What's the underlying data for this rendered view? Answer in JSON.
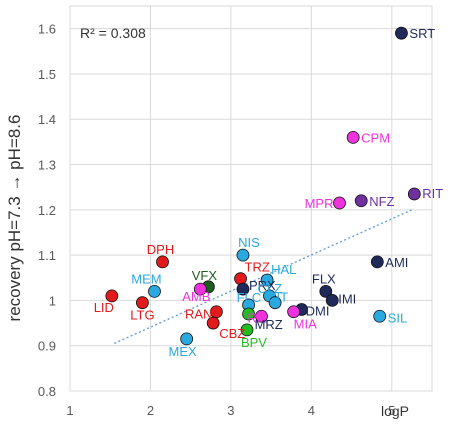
{
  "chart_data": {
    "type": "scatter",
    "title": "",
    "xlabel": "logP",
    "ylabel": "recovery pH=7.3 → pH=8.6",
    "annotation": "R² = 0.308",
    "xlim": [
      1,
      5.5
    ],
    "ylim": [
      0.8,
      1.65
    ],
    "xticks": [
      "1",
      "2",
      "3",
      "4",
      "5"
    ],
    "yticks": [
      "0.8",
      "0.9",
      "1",
      "1.1",
      "1.2",
      "1.3",
      "1.4",
      "1.5",
      "1.6"
    ],
    "grid": true,
    "trendline": {
      "style": "dotted",
      "color": "#5b9bd5",
      "x": [
        1.55,
        5.25
      ],
      "y": [
        0.905,
        1.2
      ]
    },
    "colors": {
      "red": "#e31a1c",
      "navy": "#1f2a5a",
      "magenta": "#ee33dd",
      "purple": "#7030a0",
      "cyan": "#2aa8e0",
      "green": "#22bb22",
      "darkgreen": "#1d5e1d"
    },
    "points": [
      {
        "label": "SRT",
        "x": 5.12,
        "y": 1.59,
        "color": "navy",
        "label_color": "navy"
      },
      {
        "label": "CPM",
        "x": 4.52,
        "y": 1.36,
        "color": "magenta",
        "label_color": "magenta"
      },
      {
        "label": "MPR",
        "x": 4.35,
        "y": 1.215,
        "color": "magenta",
        "label_color": "magenta"
      },
      {
        "label": "NFZ",
        "x": 4.62,
        "y": 1.22,
        "color": "purple",
        "label_color": "purple"
      },
      {
        "label": "RIT",
        "x": 5.28,
        "y": 1.235,
        "color": "purple",
        "label_color": "purple"
      },
      {
        "label": "AMI",
        "x": 4.82,
        "y": 1.085,
        "color": "navy",
        "label_color": "navy"
      },
      {
        "label": "NIS",
        "x": 3.15,
        "y": 1.1,
        "color": "cyan",
        "label_color": "cyan"
      },
      {
        "label": "HAL",
        "x": 3.45,
        "y": 1.045,
        "color": "cyan",
        "label_color": "cyan"
      },
      {
        "label": "FLX",
        "x": 4.18,
        "y": 1.02,
        "color": "navy",
        "label_color": "navy"
      },
      {
        "label": "IMI",
        "x": 4.26,
        "y": 1.0,
        "color": "navy",
        "label_color": "navy"
      },
      {
        "label": "DMI",
        "x": 3.88,
        "y": 0.98,
        "color": "navy",
        "label_color": "navy"
      },
      {
        "label": "SIL",
        "x": 4.85,
        "y": 0.965,
        "color": "cyan",
        "label_color": "cyan"
      },
      {
        "label": "DPH",
        "x": 2.15,
        "y": 1.085,
        "color": "red",
        "label_color": "red"
      },
      {
        "label": "MEM",
        "x": 2.05,
        "y": 1.02,
        "color": "cyan",
        "label_color": "cyan"
      },
      {
        "label": "LID",
        "x": 1.52,
        "y": 1.01,
        "color": "red",
        "label_color": "red"
      },
      {
        "label": "LTG",
        "x": 1.9,
        "y": 0.995,
        "color": "red",
        "label_color": "red"
      },
      {
        "label": "VFX",
        "x": 2.72,
        "y": 1.03,
        "color": "darkgreen",
        "label_color": "darkgreen"
      },
      {
        "label": "AMB",
        "x": 2.62,
        "y": 1.025,
        "color": "magenta",
        "label_color": "magenta"
      },
      {
        "label": "TRZ",
        "x": 3.12,
        "y": 1.048,
        "color": "red",
        "label_color": "red"
      },
      {
        "label": "PRX",
        "x": 3.15,
        "y": 1.025,
        "color": "navy",
        "label_color": "navy"
      },
      {
        "label": "CLZ",
        "x": 3.48,
        "y": 1.01,
        "color": "cyan",
        "label_color": "cyan"
      },
      {
        "label": "FLC",
        "x": 3.22,
        "y": 0.99,
        "color": "cyan",
        "label_color": "cyan"
      },
      {
        "label": "CIT",
        "x": 3.55,
        "y": 0.995,
        "color": "cyan",
        "label_color": "cyan"
      },
      {
        "label": "RAN",
        "x": 2.82,
        "y": 0.975,
        "color": "red",
        "label_color": "red"
      },
      {
        "label": "CBZ",
        "x": 2.78,
        "y": 0.95,
        "color": "red",
        "label_color": "red"
      },
      {
        "label": "RIL",
        "x": 3.38,
        "y": 0.965,
        "color": "magenta",
        "label_color": "magenta"
      },
      {
        "label": "MIA",
        "x": 3.78,
        "y": 0.975,
        "color": "magenta",
        "label_color": "magenta"
      },
      {
        "label": "MRZ",
        "x": 3.22,
        "y": 0.97,
        "color": "green",
        "label_color": "navy"
      },
      {
        "label": "BPV",
        "x": 3.2,
        "y": 0.935,
        "color": "green",
        "label_color": "green"
      },
      {
        "label": "MEX",
        "x": 2.45,
        "y": 0.915,
        "color": "cyan",
        "label_color": "cyan"
      }
    ]
  }
}
